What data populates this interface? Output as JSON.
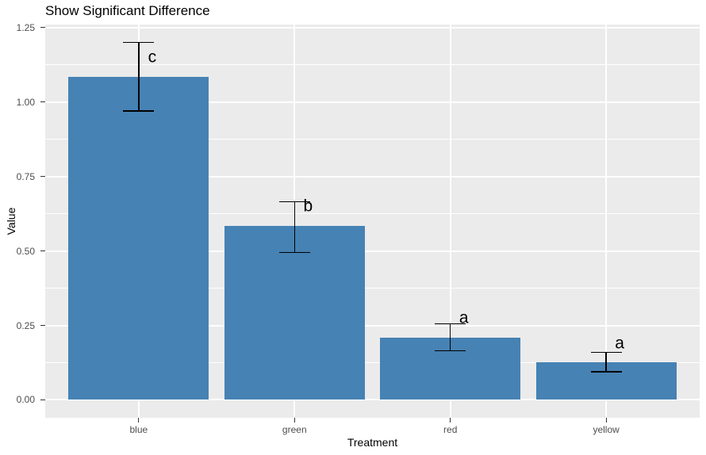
{
  "chart_data": {
    "type": "bar",
    "title": "Show Significant Difference",
    "xlabel": "Treatment",
    "ylabel": "Value",
    "categories": [
      "blue",
      "green",
      "red",
      "yellow"
    ],
    "values": [
      1.085,
      0.585,
      0.21,
      0.125
    ],
    "error_low": [
      0.97,
      0.495,
      0.165,
      0.095
    ],
    "error_high": [
      1.2,
      0.665,
      0.255,
      0.16
    ],
    "sig_letters": [
      "c",
      "b",
      "a",
      "a"
    ],
    "sig_letter_value_offset": 0.065,
    "y_tick_labels": [
      "0.00",
      "0.25",
      "0.50",
      "0.75",
      "1.00",
      "1.25"
    ],
    "y_tick_values": [
      0,
      0.25,
      0.5,
      0.75,
      1.0,
      1.25
    ],
    "y_minor_values": [
      0.125,
      0.375,
      0.625,
      0.875,
      1.125
    ],
    "ylim": [
      -0.06,
      1.26
    ],
    "grid": true,
    "legend": "none",
    "colors": {
      "bar": "#4682B4",
      "panel_bg": "#EBEBEB",
      "grid": "#FFFFFF",
      "tick_label": "#4D4D4D",
      "tick_mark": "#333333",
      "text": "#000000",
      "background": "#FFFFFF"
    }
  }
}
